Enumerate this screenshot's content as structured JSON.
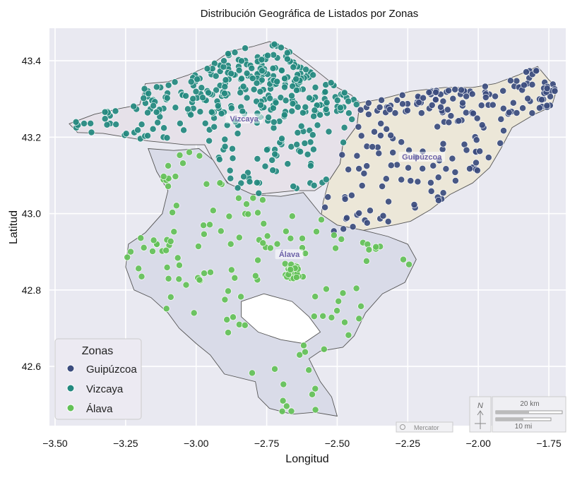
{
  "chart_data": {
    "type": "scatter",
    "title": "Distribución Geográfica de Listados por Zonas",
    "xlabel": "Longitud",
    "ylabel": "Latitud",
    "xlim": [
      -3.52,
      -1.69
    ],
    "ylim": [
      42.445,
      43.485
    ],
    "xticks": [
      -3.5,
      -3.25,
      -3.0,
      -2.75,
      -2.5,
      -2.25,
      -2.0,
      -1.75
    ],
    "xtick_labels": [
      "−3.50",
      "−3.25",
      "−3.00",
      "−2.75",
      "−2.50",
      "−2.25",
      "−2.00",
      "−1.75"
    ],
    "yticks": [
      42.6,
      42.8,
      43.0,
      43.2,
      43.4
    ],
    "ytick_labels": [
      "42.6",
      "42.8",
      "43.0",
      "43.2",
      "43.4"
    ],
    "grid": true,
    "legend": {
      "title": "Zonas",
      "placement": "lower-left"
    },
    "regions": [
      {
        "name": "Vizcaya",
        "label_lon": -2.83,
        "label_lat": 43.245,
        "fill": "#e6e1e9"
      },
      {
        "name": "Guipúzcoa",
        "label_lon": -2.2,
        "label_lat": 43.145,
        "fill": "#ece7d8"
      },
      {
        "name": "Álava",
        "label_lon": -2.67,
        "label_lat": 42.89,
        "fill": "#d9dbe8"
      }
    ],
    "series": [
      {
        "name": "Guipúzcoa",
        "color": "#3b4c7e",
        "count": 210,
        "seed": 11
      },
      {
        "name": "Vizcaya",
        "color": "#23897f",
        "count": 380,
        "seed": 23
      },
      {
        "name": "Álava",
        "color": "#63c157",
        "count": 160,
        "seed": 37
      }
    ],
    "north_arrow": "N",
    "scalebar": {
      "km_label": "20 km",
      "mi_label": "10 mi"
    },
    "projection_label": "Mercator"
  },
  "colors": {
    "axes_bg": "#e9e9f1",
    "grid": "#ffffff",
    "outline": "#555555"
  }
}
